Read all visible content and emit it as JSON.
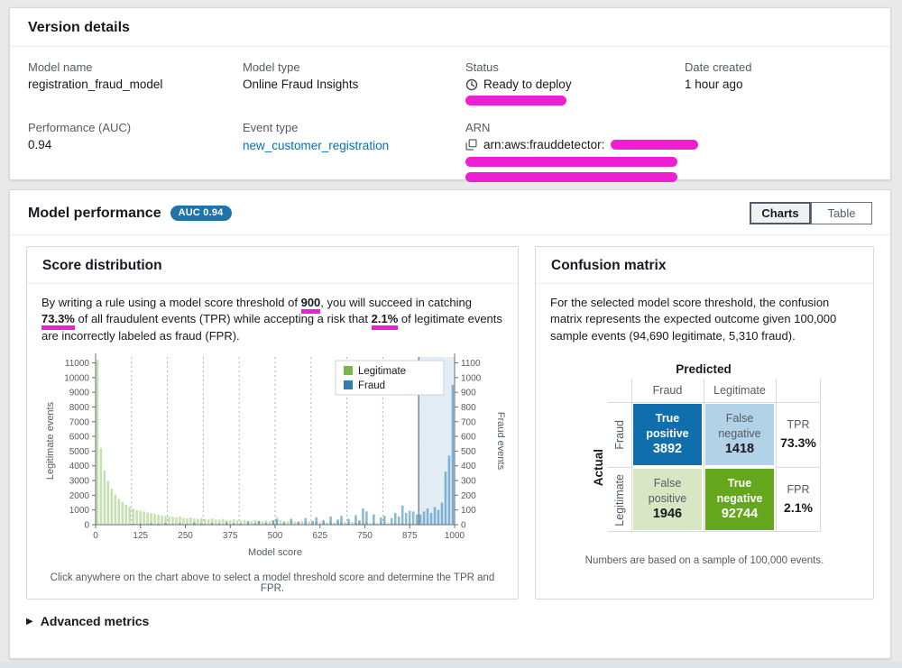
{
  "version_details": {
    "title": "Version details",
    "model_name": {
      "label": "Model name",
      "value": "registration_fraud_model"
    },
    "model_type": {
      "label": "Model type",
      "value": "Online Fraud Insights"
    },
    "status": {
      "label": "Status",
      "value": "Ready to deploy"
    },
    "date_created": {
      "label": "Date created",
      "value": "1 hour ago"
    },
    "performance": {
      "label": "Performance (AUC)",
      "value": "0.94"
    },
    "event_type": {
      "label": "Event type",
      "value": "new_customer_registration"
    },
    "arn": {
      "label": "ARN",
      "value_prefix": "arn:aws:frauddetector:"
    }
  },
  "model_performance": {
    "title": "Model performance",
    "auc_badge": "AUC 0.94",
    "view_toggle": {
      "options": [
        "Charts",
        "Table"
      ],
      "selected": "Charts"
    },
    "advanced_metrics_label": "Advanced metrics"
  },
  "score_distribution": {
    "title": "Score distribution",
    "desc": {
      "p1": "By writing a rule using a model score threshold of ",
      "hl1": "900",
      "p2": ", you will succeed in catching ",
      "hl2": "73.3%",
      "p3": " of all fraudulent events (TPR) while accepting a risk that ",
      "hl3": "2.1%",
      "p4": " of legitimate events are incorrectly labeled as fraud (FPR)."
    },
    "footnote": "Click anywhere on the chart above to select a model threshold score and determine the TPR and FPR."
  },
  "chart_data": {
    "type": "bar",
    "title": "Score distribution",
    "xlabel": "Model score",
    "x_axis": {
      "min": 0,
      "max": 1000,
      "ticks": [
        0,
        125,
        250,
        375,
        500,
        625,
        750,
        875,
        1000
      ]
    },
    "left_axis": {
      "label": "Legitimate events",
      "max": 11400,
      "tick_step": 1000,
      "tick_max": 11000
    },
    "right_axis": {
      "label": "Fraud events",
      "max": 1140,
      "tick_step": 100,
      "tick_max": 1100
    },
    "gridlines": [
      100,
      200,
      300,
      400,
      500,
      600,
      700,
      800,
      900
    ],
    "threshold": 900,
    "bin_width": 10,
    "legend_position": "top-right",
    "series": [
      {
        "name": "Legitimate",
        "axis": "left",
        "color": "#7ab648",
        "opacity": 0.42,
        "values": [
          11200,
          5200,
          3700,
          2950,
          2450,
          2050,
          1750,
          1550,
          1350,
          1200,
          1100,
          1000,
          950,
          900,
          830,
          780,
          720,
          680,
          630,
          600,
          560,
          530,
          500,
          560,
          460,
          440,
          490,
          420,
          400,
          450,
          380,
          360,
          420,
          350,
          330,
          390,
          320,
          300,
          360,
          290,
          280,
          330,
          270,
          260,
          310,
          250,
          240,
          300,
          230,
          280,
          520,
          300,
          240,
          220,
          260,
          210,
          200,
          250,
          190,
          230,
          180,
          220,
          170,
          210,
          160,
          200,
          150,
          190,
          140,
          180,
          130,
          170,
          120,
          160,
          110,
          150,
          100,
          140,
          90,
          130,
          80,
          120,
          70,
          110,
          60,
          100,
          50,
          90,
          40,
          80,
          30,
          60,
          25,
          50,
          20,
          40,
          15,
          30,
          10,
          20
        ]
      },
      {
        "name": "Fraud",
        "axis": "right",
        "color": "#2e7fb5",
        "opacity": 0.55,
        "values": [
          0,
          0,
          0,
          0,
          0,
          0,
          0,
          0,
          0,
          0,
          6,
          0,
          8,
          0,
          5,
          10,
          0,
          6,
          0,
          12,
          0,
          5,
          0,
          10,
          0,
          6,
          0,
          14,
          0,
          8,
          5,
          0,
          12,
          0,
          8,
          0,
          16,
          0,
          10,
          0,
          8,
          0,
          20,
          0,
          10,
          25,
          0,
          12,
          0,
          30,
          35,
          0,
          15,
          0,
          40,
          0,
          20,
          0,
          45,
          0,
          25,
          50,
          0,
          30,
          0,
          55,
          0,
          35,
          60,
          0,
          40,
          0,
          65,
          30,
          110,
          90,
          0,
          70,
          0,
          50,
          60,
          0,
          45,
          80,
          55,
          130,
          80,
          95,
          90,
          70,
          70,
          90,
          110,
          80,
          120,
          100,
          150,
          360,
          470,
          950
        ]
      }
    ]
  },
  "confusion_matrix": {
    "title": "Confusion matrix",
    "description": "For the selected model score threshold, the confusion matrix represents the expected outcome given 100,000 sample events (94,690 legitimate, 5,310 fraud).",
    "predicted_label": "Predicted",
    "actual_label": "Actual",
    "col_labels": [
      "Fraud",
      "Legitimate"
    ],
    "row_labels": [
      "Fraud",
      "Legitimate"
    ],
    "cells": {
      "tp": {
        "label": "True positive",
        "value": "3892",
        "color": "#0f6eab"
      },
      "fn": {
        "label": "False negative",
        "value": "1418",
        "color": "#b2d3e7"
      },
      "fp": {
        "label": "False positive",
        "value": "1946",
        "color": "#d8e6c3"
      },
      "tn": {
        "label": "True negative",
        "value": "92744",
        "color": "#65a61f"
      }
    },
    "tpr": {
      "label": "TPR",
      "value": "73.3%"
    },
    "fpr": {
      "label": "FPR",
      "value": "2.1%"
    },
    "footnote": "Numbers are based on a sample of 100,000 events."
  },
  "colors": {
    "redaction": "#ee1fd2",
    "badge_blue": "#1f73a8",
    "link_blue": "#0073bb",
    "threshold_shade": "#aecbe3"
  }
}
